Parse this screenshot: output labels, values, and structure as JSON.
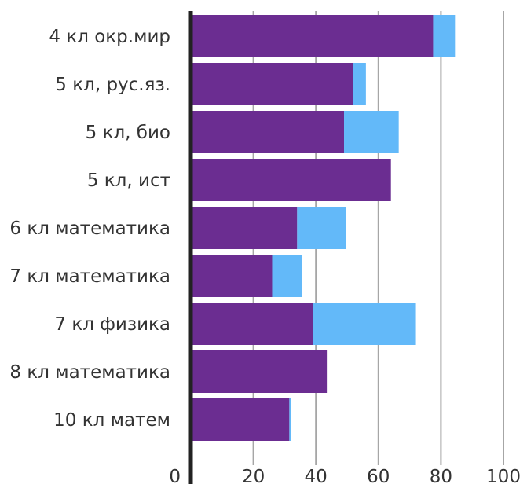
{
  "chart_data": {
    "type": "bar",
    "orientation": "horizontal",
    "stacked": true,
    "categories": [
      "4 кл окр.мир",
      "5 кл, рус.яз.",
      "5 кл, био",
      "5 кл, ист",
      "6 кл математика",
      "7 кл математика",
      "7 кл физика",
      "8 кл математика",
      "10 кл матем"
    ],
    "series": [
      {
        "color": "#6b2d91",
        "values": [
          77.5,
          52,
          49,
          64,
          34,
          26,
          39,
          43.5,
          31.5
        ]
      },
      {
        "color": "#63b9f9",
        "values": [
          7,
          4,
          17.5,
          0,
          15.5,
          9.5,
          33,
          0,
          0.5
        ]
      }
    ],
    "xlim": [
      0,
      100
    ],
    "xticks": [
      "0",
      "20",
      "40",
      "60",
      "80",
      "100"
    ],
    "grid": true,
    "legend": "none"
  }
}
